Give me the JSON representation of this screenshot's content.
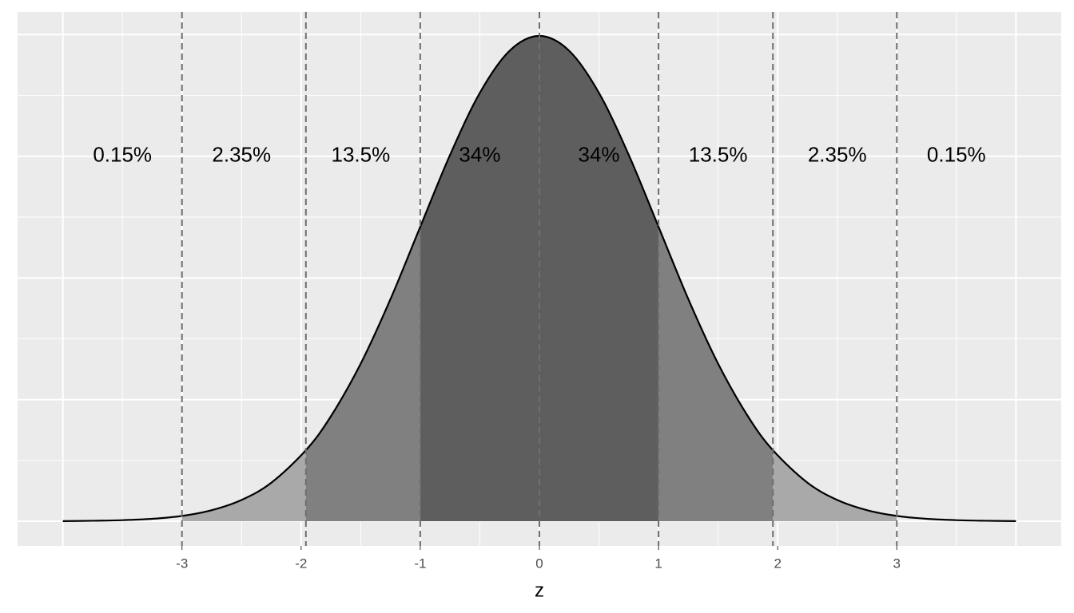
{
  "chart_data": {
    "type": "area",
    "x_label": "z",
    "x": [
      -4,
      -3.75,
      -3.5,
      -3.25,
      -3,
      -2.75,
      -2.5,
      -2.25,
      -1.96,
      -1.75,
      -1.5,
      -1.25,
      -1,
      -0.75,
      -0.5,
      -0.25,
      0,
      0.25,
      0.5,
      0.75,
      1,
      1.25,
      1.5,
      1.75,
      1.96,
      2.25,
      2.5,
      2.75,
      3,
      3.25,
      3.5,
      3.75,
      4
    ],
    "values": [
      0.0001,
      0.0004,
      0.0009,
      0.002,
      0.0044,
      0.0091,
      0.0175,
      0.0317,
      0.0584,
      0.0863,
      0.1295,
      0.1826,
      0.242,
      0.3011,
      0.3521,
      0.3867,
      0.3989,
      0.3867,
      0.3521,
      0.3011,
      0.242,
      0.1826,
      0.1295,
      0.0863,
      0.0584,
      0.0317,
      0.0175,
      0.0091,
      0.0044,
      0.002,
      0.0009,
      0.0004,
      0.0001
    ],
    "line_color": "#000000",
    "regions": [
      {
        "from": -3,
        "to": -1.96,
        "color": "#a9a9a9"
      },
      {
        "from": -1.96,
        "to": -1,
        "color": "#808080"
      },
      {
        "from": -1,
        "to": 1,
        "color": "#5e5e5e"
      },
      {
        "from": 1,
        "to": 1.96,
        "color": "#808080"
      },
      {
        "from": 1.96,
        "to": 3,
        "color": "#a9a9a9"
      }
    ],
    "vlines": [
      -3,
      -1.96,
      -1,
      0,
      1,
      1.96,
      3
    ],
    "annotations": [
      {
        "text": "0.15%",
        "x": -3.5,
        "y": 0.3
      },
      {
        "text": "2.35%",
        "x": -2.5,
        "y": 0.3
      },
      {
        "text": "13.5%",
        "x": -1.5,
        "y": 0.3
      },
      {
        "text": "34%",
        "x": -0.5,
        "y": 0.3
      },
      {
        "text": "34%",
        "x": 0.5,
        "y": 0.3
      },
      {
        "text": "13.5%",
        "x": 1.5,
        "y": 0.3
      },
      {
        "text": "2.35%",
        "x": 2.5,
        "y": 0.3
      },
      {
        "text": "0.15%",
        "x": 3.5,
        "y": 0.3
      }
    ],
    "xlim": [
      -4.38,
      4.38
    ],
    "ylim": [
      -0.0203,
      0.4186
    ],
    "xticks": [
      -3,
      -2,
      -1,
      0,
      1,
      2,
      3
    ],
    "xgrid_extra": [
      -4,
      4
    ],
    "xminor": [
      -3.5,
      -2.5,
      -1.5,
      -0.5,
      0.5,
      1.5,
      2.5,
      3.5
    ],
    "yticks": [
      0,
      0.1,
      0.2,
      0.3,
      0.4
    ],
    "yminor": [
      0.05,
      0.15,
      0.25,
      0.35
    ],
    "show_y_tick_labels": false,
    "grid": true
  }
}
